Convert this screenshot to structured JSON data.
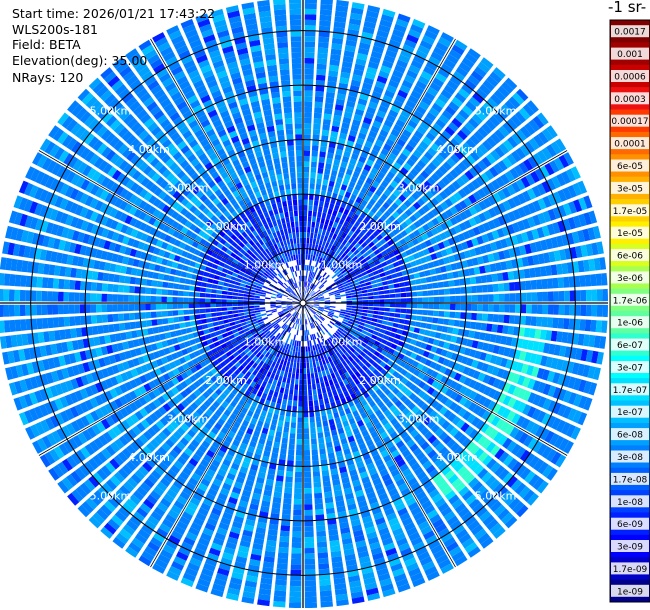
{
  "info": {
    "start_time": "Start time: 2026/01/21 17:43:22",
    "instrument": "WLS200s-181",
    "field": "Field: BETA",
    "elevation": "Elevation(deg): 35.00",
    "nrays": "NRays: 120"
  },
  "colorbar": {
    "title": "-1 sr-",
    "labels": [
      "0.0017",
      "0.001",
      "0.0006",
      "0.0003",
      "0.00017",
      "0.0001",
      "6e-05",
      "3e-05",
      "1.7e-05",
      "1e-05",
      "6e-06",
      "3e-06",
      "1.7e-06",
      "1e-06",
      "6e-07",
      "3e-07",
      "1.7e-07",
      "1e-07",
      "6e-08",
      "3e-08",
      "1.7e-08",
      "1e-08",
      "6e-09",
      "3e-09",
      "1.7e-09",
      "1e-09"
    ],
    "colors": [
      "#800000",
      "#a00000",
      "#c80000",
      "#ee1010",
      "#ff3a00",
      "#ff6a00",
      "#ff9000",
      "#ffb000",
      "#ffd000",
      "#fff000",
      "#d8ff20",
      "#a8ff50",
      "#80ff80",
      "#60ffa0",
      "#30ffd0",
      "#00ffff",
      "#00e0ff",
      "#00c0ff",
      "#00a0ff",
      "#0080ff",
      "#0060ff",
      "#0040ff",
      "#0020ff",
      "#0000ff",
      "#0000c8",
      "#00008c"
    ]
  },
  "chart_data": {
    "type": "heatmap",
    "projection": "polar PPI (plan view)",
    "rays": 120,
    "elevation_deg": 35.0,
    "max_range_km": 5.6,
    "range_rings_km": [
      1,
      2,
      3,
      4,
      5
    ],
    "ring_labels": [
      "1.00km",
      "2.00km",
      "3.00km",
      "4.00km",
      "5.00km"
    ],
    "ring_label_bearings_deg": [
      45,
      135,
      225,
      315
    ],
    "grid": true,
    "color_scale": "log",
    "dominant_value_range": [
      "1e-08",
      "6e-08"
    ],
    "features": [
      {
        "description": "enhanced backscatter arc",
        "bearing_deg": [
          95,
          145
        ],
        "range_km": [
          4.0,
          4.5
        ],
        "value_approx": "1e-07"
      }
    ]
  }
}
